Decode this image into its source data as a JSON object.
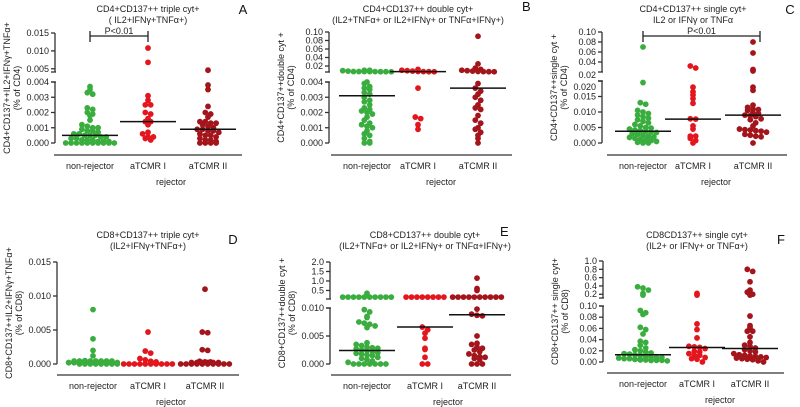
{
  "colors": {
    "non_rejector": "#3aad3f",
    "aTCMR_I": "#e3161e",
    "aTCMR_II": "#a3141b",
    "median": "#111111",
    "axis": "#333333"
  },
  "chart_data": [
    {
      "type": "scatter",
      "panel": "A",
      "title": [
        "CD4+CD137++ triple cyt+",
        "( IL2+IFNγ+TNFα+)"
      ],
      "ylabel": [
        "CD4+CD137++IL2+IFNγ+TNFα+",
        "(% of CD4)"
      ],
      "xlabel": "rejector",
      "categories": [
        "non-rejector",
        "aTCMR I",
        "aTCMR II"
      ],
      "ylim_lower": [
        0,
        0.004
      ],
      "ylim_upper": [
        0.0041,
        0.015
      ],
      "ticks_lower": [
        {
          "v": 0,
          "label": "0.000"
        },
        {
          "v": 0.001,
          "label": "0.001"
        },
        {
          "v": 0.002,
          "label": "0.002"
        },
        {
          "v": 0.003,
          "label": "0.003"
        },
        {
          "v": 0.004,
          "label": "0.004"
        }
      ],
      "ticks_upper": [
        {
          "v": 0.005,
          "label": "0.005"
        },
        {
          "v": 0.01,
          "label": "0.010"
        },
        {
          "v": 0.015,
          "label": "0.015"
        }
      ],
      "significance": {
        "from": 0,
        "to": 1,
        "label": "P<0.01"
      },
      "medians": [
        0.0005,
        0.0014,
        0.0009
      ],
      "series": [
        {
          "name": "non-rejector",
          "values": [
            0.0037,
            0.0035,
            0.0033,
            0.0032,
            0.0023,
            0.0022,
            0.002,
            0.0019,
            0.0018,
            0.0015,
            0.0012,
            0.0011,
            0.001,
            0.001,
            0.0009,
            0.0008,
            0.0008,
            0.0007,
            0.0006,
            0.0006,
            0.0005,
            0.0005,
            0.0005,
            0.0004,
            0.0004,
            0.0003,
            0.0003,
            0.0002,
            0.0002,
            0.0002,
            0.0001,
            0.0001,
            0.0001,
            0,
            0,
            0,
            0,
            0,
            0,
            0,
            0,
            0,
            0
          ]
        },
        {
          "name": "aTCMR I",
          "values": [
            0.0108,
            0.0068,
            0.0031,
            0.0028,
            0.0025,
            0.0025,
            0.002,
            0.0019,
            0.0016,
            0.0014,
            0.0014,
            0.0012,
            0.0007,
            0.0006,
            0.0004,
            0.0004,
            0.0003,
            0.0002
          ]
        },
        {
          "name": "aTCMR II",
          "values": [
            0.0046,
            0.0038,
            0.0035,
            0.0024,
            0.002,
            0.0019,
            0.0017,
            0.0014,
            0.0014,
            0.0013,
            0.0013,
            0.0012,
            0.0011,
            0.001,
            0.0009,
            0.0009,
            0.0008,
            0.0008,
            0.0007,
            0.0006,
            0.0005,
            0.0005,
            0.0004,
            0.0003,
            0.0002,
            0.0002,
            0.0001,
            0,
            0,
            0,
            0
          ]
        }
      ]
    },
    {
      "type": "scatter",
      "panel": "B",
      "title": [
        "CD4+CD137++ double cyt+",
        "(IL2+TNFα+ or IL2+IFNγ+ or TNFα+IFNγ+)"
      ],
      "ylabel": [
        "CD4+CD137++double cyt +",
        "(% of CD4)"
      ],
      "xlabel": "rejector",
      "categories": [
        "non-rejector",
        "aTCMR I",
        "aTCMR II"
      ],
      "ylim_lower": [
        0,
        0.004
      ],
      "ylim_upper": [
        0.0059,
        0.1
      ],
      "ticks_lower": [
        {
          "v": 0,
          "label": "0.000"
        },
        {
          "v": 0.001,
          "label": "0.001"
        },
        {
          "v": 0.002,
          "label": "0.002"
        },
        {
          "v": 0.003,
          "label": "0.003"
        },
        {
          "v": 0.004,
          "label": "0.004"
        }
      ],
      "ticks_upper": [
        {
          "v": 0.02,
          "label": "0.02"
        },
        {
          "v": 0.04,
          "label": "0.04"
        },
        {
          "v": 0.06,
          "label": "0.06"
        },
        {
          "v": 0.08,
          "label": "0.08"
        },
        {
          "v": 0.1,
          "label": "0.10"
        }
      ],
      "significance": null,
      "medians": [
        0.0031,
        0.0068,
        0.0036
      ],
      "series": [
        {
          "name": "non-rejector",
          "values": [
            0.009,
            0.008,
            0.007,
            0.007,
            0.007,
            0.0068,
            0.0068,
            0.0066,
            0.0066,
            0.0065,
            0.0065,
            0.0064,
            0.004,
            0.0039,
            0.0037,
            0.0036,
            0.0035,
            0.0033,
            0.0032,
            0.003,
            0.0028,
            0.0027,
            0.0025,
            0.0023,
            0.0022,
            0.0021,
            0.002,
            0.0019,
            0.0017,
            0.0015,
            0.0013,
            0.0012,
            0.0011,
            0.001,
            0.0008,
            0.0006,
            0.0005,
            0.0003,
            0.0001,
            0,
            0
          ]
        },
        {
          "name": "aTCMR I",
          "values": [
            0.012,
            0.01,
            0.009,
            0.008,
            0.0072,
            0.0068,
            0.0066,
            0.0065,
            0.0036,
            0.0017,
            0.0016,
            0.0012,
            0.0009
          ]
        },
        {
          "name": "aTCMR II",
          "values": [
            0.09,
            0.025,
            0.015,
            0.012,
            0.01,
            0.009,
            0.008,
            0.0072,
            0.0068,
            0.0066,
            0.0065,
            0.0039,
            0.0036,
            0.0034,
            0.0032,
            0.003,
            0.0028,
            0.0025,
            0.0023,
            0.0022,
            0.0018,
            0.0015,
            0.0013,
            0.001,
            0.0009,
            0.0007,
            0.0005,
            0.0003,
            0
          ]
        }
      ]
    },
    {
      "type": "scatter",
      "panel": "C",
      "title": [
        "CD4+CD137++ single cyt+",
        "IL2 or IFNγ or TNFα"
      ],
      "ylabel": [
        "CD4+CD137++single cyt +",
        "(% of CD4)"
      ],
      "xlabel": "rejector",
      "categories": [
        "non-rejector",
        "aTCMR I",
        "aTCMR II"
      ],
      "ylim_lower": [
        0,
        0.02
      ],
      "ylim_upper": [
        0.02,
        0.1
      ],
      "ticks_lower": [
        {
          "v": 0,
          "label": "0.000"
        },
        {
          "v": 0.005,
          "label": "0.005"
        },
        {
          "v": 0.01,
          "label": "0.010"
        },
        {
          "v": 0.015,
          "label": "0.015"
        },
        {
          "v": 0.02,
          "label": "0.020"
        }
      ],
      "ticks_upper": [
        {
          "v": 0.02,
          "label": "0.02"
        },
        {
          "v": 0.04,
          "label": "0.04"
        },
        {
          "v": 0.06,
          "label": "0.06"
        },
        {
          "v": 0.08,
          "label": "0.08"
        },
        {
          "v": 0.1,
          "label": "0.10"
        }
      ],
      "significance": {
        "from": 0,
        "to": 2,
        "label": "P<0.01"
      },
      "medians": [
        0.0038,
        0.0077,
        0.009
      ],
      "series": [
        {
          "name": "non-rejector",
          "values": [
            0.07,
            0.0195,
            0.013,
            0.0125,
            0.0105,
            0.01,
            0.0095,
            0.009,
            0.0085,
            0.008,
            0.0075,
            0.007,
            0.0065,
            0.006,
            0.0055,
            0.005,
            0.0048,
            0.0045,
            0.0042,
            0.004,
            0.0038,
            0.0036,
            0.0034,
            0.003,
            0.0028,
            0.0025,
            0.0022,
            0.002,
            0.0018,
            0.0015,
            0.0012,
            0.001,
            0.0008,
            0.0005,
            0.0002,
            0,
            0
          ]
        },
        {
          "name": "aTCMR I",
          "values": [
            0.032,
            0.028,
            0.018,
            0.0165,
            0.0155,
            0.0143,
            0.0128,
            0.0078,
            0.0077,
            0.0055,
            0.0045,
            0.0022,
            0.0022,
            0.0015,
            0.0008,
            0
          ]
        },
        {
          "name": "aTCMR II",
          "values": [
            0.08,
            0.058,
            0.025,
            0.022,
            0.018,
            0.017,
            0.0122,
            0.0115,
            0.011,
            0.0108,
            0.0105,
            0.0098,
            0.0095,
            0.009,
            0.0088,
            0.0085,
            0.0078,
            0.0075,
            0.0065,
            0.0055,
            0.0045,
            0.0043,
            0.0042,
            0.004,
            0.0038,
            0.0035,
            0.0028,
            0.0025,
            0.0022,
            0.002,
            0
          ]
        }
      ]
    },
    {
      "type": "scatter",
      "panel": "D",
      "title": [
        "CD8+CD137++ triple cyt+",
        "(IL2+IFNγ+TNFα+)"
      ],
      "ylabel": [
        "CD8+CD137++IL2+IFNγ+TNFα+",
        "(% of CD8)"
      ],
      "xlabel": "rejector",
      "categories": [
        "non-rejector",
        "aTCMR I",
        "aTCMR II"
      ],
      "ylim_lower": [
        0,
        0.015
      ],
      "ylim_upper": null,
      "ticks_lower": [
        {
          "v": 0,
          "label": "0.000"
        },
        {
          "v": 0.005,
          "label": "0.005"
        },
        {
          "v": 0.01,
          "label": "0.010"
        },
        {
          "v": 0.015,
          "label": "0.015"
        }
      ],
      "ticks_upper": [],
      "significance": null,
      "medians": [
        0,
        0,
        0
      ],
      "series": [
        {
          "name": "non-rejector",
          "values": [
            0.008,
            0.0037,
            0.002,
            0.0012,
            0.0005,
            0.0004,
            0.0003,
            0.0003,
            0.0002,
            0.0002,
            0,
            0,
            0,
            0,
            0,
            0,
            0,
            0,
            0,
            0,
            0,
            0,
            0,
            0,
            0,
            0,
            0,
            0,
            0,
            0,
            0,
            0,
            0,
            0,
            0,
            0
          ]
        },
        {
          "name": "aTCMR I",
          "values": [
            0.0047,
            0.0019,
            0.0016,
            0.0008,
            0.0006,
            0.0004,
            0.0003,
            0,
            0,
            0,
            0,
            0,
            0,
            0,
            0,
            0,
            0
          ]
        },
        {
          "name": "aTCMR II",
          "values": [
            0.011,
            0.0047,
            0.0046,
            0.0021,
            0.002,
            0.0004,
            0.0003,
            0.0003,
            0,
            0,
            0,
            0,
            0,
            0,
            0,
            0,
            0,
            0,
            0,
            0,
            0,
            0,
            0,
            0
          ]
        }
      ]
    },
    {
      "type": "scatter",
      "panel": "E",
      "title": [
        "CD8+CD137++ double cyt+",
        "(IL2+TNFα+ or IL2+IFNγ+ or TNFα+IFNγ+)"
      ],
      "ylabel": [
        "CD8+CD137++double cyt +",
        "(% of CD8)"
      ],
      "xlabel": "rejector",
      "categories": [
        "non-rejector",
        "aTCMR I",
        "aTCMR II"
      ],
      "ylim_lower": [
        0,
        0.01
      ],
      "ylim_upper": [
        0.05,
        2.0
      ],
      "ticks_lower": [
        {
          "v": 0,
          "label": "0.000"
        },
        {
          "v": 0.005,
          "label": "0.005"
        },
        {
          "v": 0.01,
          "label": "0.010"
        }
      ],
      "ticks_upper": [
        {
          "v": 0.5,
          "label": "0.5"
        },
        {
          "v": 1.0,
          "label": "1.0"
        },
        {
          "v": 1.5,
          "label": "1.5"
        },
        {
          "v": 2.0,
          "label": "2.0"
        }
      ],
      "significance": null,
      "medians": [
        0.0024,
        0.0066,
        0.0088
      ],
      "series": [
        {
          "name": "non-rejector",
          "values": [
            0.35,
            0.15,
            0.15,
            0.15,
            0.15,
            0.15,
            0.15,
            0.15,
            0.15,
            0.15,
            0.15,
            0.15,
            0.0097,
            0.0093,
            0.0085,
            0.0083,
            0.0075,
            0.0073,
            0.0071,
            0.0068,
            0.0065,
            0.0038,
            0.0035,
            0.0033,
            0.003,
            0.0029,
            0.0028,
            0.0027,
            0.0025,
            0.0024,
            0.0022,
            0.002,
            0.0019,
            0.0018,
            0.0016,
            0.0015,
            0.0012,
            0.001,
            0.0008,
            0.0005,
            0.0003,
            0,
            0,
            0,
            0,
            0,
            0,
            0
          ]
        },
        {
          "name": "aTCMR I",
          "values": [
            0.15,
            0.15,
            0.15,
            0.15,
            0.15,
            0.15,
            0.15,
            0.15,
            0.0066,
            0.0061,
            0.0055,
            0.0046,
            0.0028,
            0.0026,
            0.0012,
            0,
            0
          ]
        },
        {
          "name": "aTCMR II",
          "values": [
            1.15,
            0.6,
            0.5,
            0.15,
            0.15,
            0.15,
            0.15,
            0.15,
            0.15,
            0.15,
            0.15,
            0.15,
            0.15,
            0.0098,
            0.0089,
            0.0087,
            0.0086,
            0.005,
            0.0037,
            0.0035,
            0.003,
            0.0028,
            0.0025,
            0.0022,
            0.0018,
            0.0015,
            0.0013,
            0.0012,
            0.001,
            0.0008,
            0,
            0,
            0
          ]
        }
      ]
    },
    {
      "type": "scatter",
      "panel": "F",
      "title": [
        "CD8CD137++ single cyt+",
        "(IL2+ or IFNγ+ or TNFα+)"
      ],
      "ylabel": [
        "CD8+CD137++ single cyt+",
        "(% of CD8)"
      ],
      "xlabel": "rejector",
      "categories": [
        "non-rejector",
        "aTCMR I",
        "aTCMR II"
      ],
      "ylim_lower": [
        0,
        0.1
      ],
      "ylim_upper": [
        0.11,
        1.0
      ],
      "ticks_lower": [
        {
          "v": 0,
          "label": "0.00"
        },
        {
          "v": 0.02,
          "label": "0.02"
        },
        {
          "v": 0.04,
          "label": "0.04"
        },
        {
          "v": 0.06,
          "label": "0.06"
        },
        {
          "v": 0.08,
          "label": "0.08"
        },
        {
          "v": 0.1,
          "label": "0.10"
        }
      ],
      "ticks_upper": [
        {
          "v": 0.2,
          "label": "0.2"
        },
        {
          "v": 0.4,
          "label": "0.4"
        },
        {
          "v": 0.6,
          "label": "0.6"
        },
        {
          "v": 0.8,
          "label": "0.8"
        },
        {
          "v": 1.0,
          "label": "1.0"
        }
      ],
      "significance": null,
      "medians": [
        0.013,
        0.026,
        0.024
      ],
      "series": [
        {
          "name": "non-rejector",
          "values": [
            0.38,
            0.35,
            0.3,
            0.22,
            0.18,
            0.092,
            0.088,
            0.085,
            0.062,
            0.058,
            0.05,
            0.037,
            0.035,
            0.03,
            0.025,
            0.022,
            0.02,
            0.018,
            0.016,
            0.015,
            0.014,
            0.013,
            0.012,
            0.01,
            0.009,
            0.008,
            0.008,
            0.007,
            0.006,
            0.006,
            0.005,
            0.005,
            0.004,
            0.004,
            0.003,
            0.003,
            0.002,
            0.002,
            0.001,
            0.001,
            0
          ]
        },
        {
          "name": "aTCMR I",
          "values": [
            0.22,
            0.18,
            0.068,
            0.058,
            0.043,
            0.028,
            0.027,
            0.026,
            0.024,
            0.019,
            0.018,
            0.015,
            0.012,
            0.012,
            0.008,
            0.006,
            0.005,
            0
          ]
        },
        {
          "name": "aTCMR II",
          "values": [
            0.8,
            0.75,
            0.5,
            0.3,
            0.25,
            0.2,
            0.18,
            0.082,
            0.065,
            0.062,
            0.055,
            0.055,
            0.045,
            0.035,
            0.03,
            0.028,
            0.025,
            0.022,
            0.02,
            0.018,
            0.015,
            0.013,
            0.012,
            0.011,
            0.01,
            0.009,
            0.008,
            0.007,
            0.006,
            0.005,
            0.004,
            0.002,
            0
          ]
        }
      ]
    }
  ]
}
